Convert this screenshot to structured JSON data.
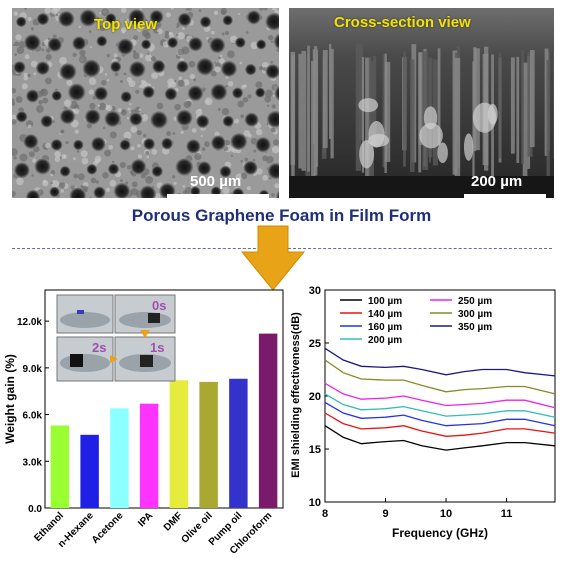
{
  "sem": {
    "top_label": "Top view",
    "top_scale": "500 µm",
    "cross_label": "Cross-section view",
    "cross_scale": "200 µm"
  },
  "main_title": "Porous Graphene Foam in Film Form",
  "chart_data": [
    {
      "type": "bar",
      "ylabel": "Weight gain (%)",
      "ylim": [
        0,
        14000
      ],
      "yticks": [
        "0.0",
        "3.0k",
        "6.0k",
        "9.0k",
        "12.0k"
      ],
      "ytick_values": [
        0,
        3000,
        6000,
        9000,
        12000
      ],
      "categories": [
        "Ethanol",
        "n-Hexane",
        "Acetone",
        "IPA",
        "DMF",
        "Olive oil",
        "Pump oil",
        "Chloroform"
      ],
      "values": [
        5300,
        4700,
        6400,
        6700,
        8200,
        8100,
        8300,
        11200
      ],
      "colors": [
        "#99ff33",
        "#1f1fe6",
        "#8cffff",
        "#ff33ff",
        "#e6ec3c",
        "#a8a832",
        "#3333cc",
        "#7a1a6b"
      ],
      "inset_labels": [
        "0s",
        "1s",
        "2s"
      ]
    },
    {
      "type": "line",
      "xlabel": "Frequency (GHz)",
      "ylabel": "EMI shielding effectiveness(dB)",
      "xlim": [
        8,
        11.8
      ],
      "ylim": [
        10,
        30
      ],
      "xticks": [
        8,
        9,
        10,
        11
      ],
      "yticks": [
        10,
        15,
        20,
        25,
        30
      ],
      "legend_placement": "top",
      "series": [
        {
          "name": "100 µm",
          "color": "#000000",
          "x": [
            8.0,
            8.3,
            8.6,
            9.0,
            9.3,
            9.6,
            10.0,
            10.3,
            10.6,
            11.0,
            11.3,
            11.8
          ],
          "y": [
            17.2,
            16.1,
            15.5,
            15.7,
            15.8,
            15.3,
            14.9,
            15.1,
            15.3,
            15.6,
            15.6,
            15.3
          ]
        },
        {
          "name": "140 µm",
          "color": "#ee1111",
          "x": [
            8.0,
            8.3,
            8.6,
            9.0,
            9.3,
            9.6,
            10.0,
            10.3,
            10.6,
            11.0,
            11.3,
            11.8
          ],
          "y": [
            18.4,
            17.4,
            16.9,
            17.0,
            17.2,
            16.7,
            16.2,
            16.3,
            16.5,
            16.9,
            16.9,
            16.5
          ]
        },
        {
          "name": "160 µm",
          "color": "#2233ee",
          "x": [
            8.0,
            8.3,
            8.6,
            9.0,
            9.3,
            9.6,
            10.0,
            10.3,
            10.6,
            11.0,
            11.3,
            11.8
          ],
          "y": [
            19.4,
            18.4,
            17.9,
            18.0,
            18.2,
            17.7,
            17.2,
            17.3,
            17.4,
            17.8,
            17.8,
            17.2
          ]
        },
        {
          "name": "200 µm",
          "color": "#33bbbb",
          "x": [
            8.0,
            8.3,
            8.6,
            9.0,
            9.3,
            9.6,
            10.0,
            10.3,
            10.6,
            11.0,
            11.3,
            11.8
          ],
          "y": [
            20.2,
            19.2,
            18.7,
            18.8,
            19.0,
            18.6,
            18.1,
            18.2,
            18.3,
            18.6,
            18.6,
            18.0
          ]
        },
        {
          "name": "250 µm",
          "color": "#ee22ee",
          "x": [
            8.0,
            8.3,
            8.6,
            9.0,
            9.3,
            9.6,
            10.0,
            10.3,
            10.6,
            11.0,
            11.3,
            11.8
          ],
          "y": [
            21.2,
            20.2,
            19.7,
            19.8,
            20.0,
            19.6,
            19.1,
            19.2,
            19.3,
            19.6,
            19.6,
            18.9
          ]
        },
        {
          "name": "300 µm",
          "color": "#8a8a22",
          "x": [
            8.0,
            8.3,
            8.6,
            9.0,
            9.3,
            9.6,
            10.0,
            10.3,
            10.6,
            11.0,
            11.3,
            11.8
          ],
          "y": [
            23.4,
            22.2,
            21.6,
            21.5,
            21.5,
            21.0,
            20.4,
            20.6,
            20.7,
            20.9,
            20.9,
            20.2
          ]
        },
        {
          "name": "350 µm",
          "color": "#1a1a80",
          "x": [
            8.0,
            8.3,
            8.6,
            9.0,
            9.3,
            9.6,
            10.0,
            10.3,
            10.6,
            11.0,
            11.3,
            11.8
          ],
          "y": [
            24.5,
            23.4,
            22.8,
            22.7,
            22.8,
            22.5,
            22.0,
            22.3,
            22.5,
            22.5,
            22.2,
            21.9
          ]
        }
      ]
    }
  ]
}
